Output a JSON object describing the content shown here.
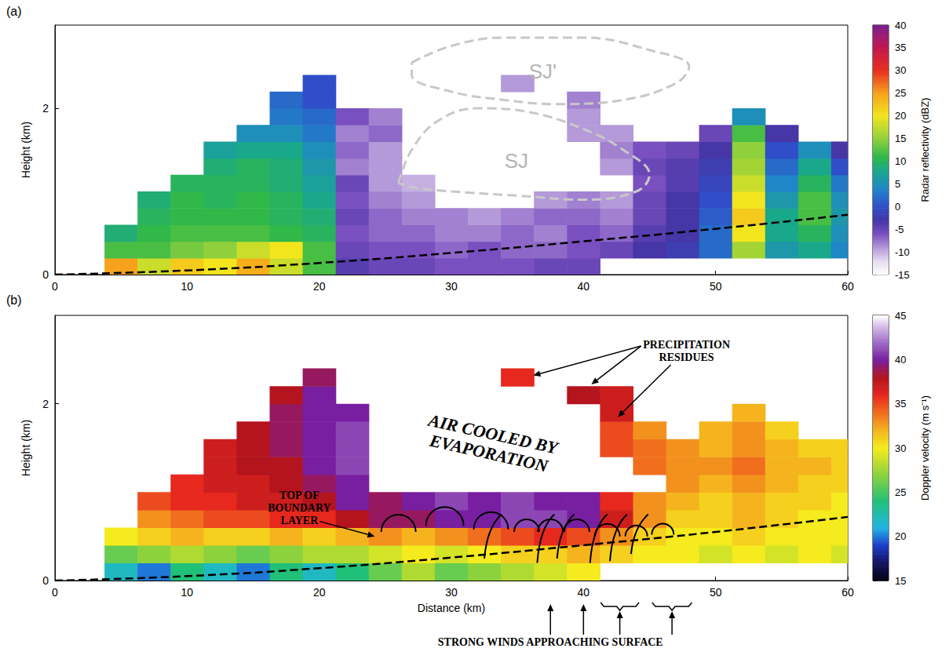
{
  "chart_data": [
    {
      "type": "heatmap",
      "label": "(a)",
      "ylabel": "Height (km)",
      "x": [
        5,
        7.5,
        10,
        12.5,
        15,
        17.5,
        20,
        22.5,
        25,
        27.5,
        30,
        32.5,
        35,
        37.5,
        40,
        42.5,
        45,
        47.5,
        50,
        52.5,
        55,
        57.5,
        60
      ],
      "y": [
        0.1,
        0.3,
        0.5,
        0.7,
        0.9,
        1.1,
        1.3,
        1.5,
        1.7,
        1.9,
        2.1,
        2.3
      ],
      "values": [
        [
          25,
          18,
          22,
          20,
          24,
          18,
          12,
          -4,
          -5,
          -5,
          -6,
          -6,
          -6,
          -5,
          -5,
          null,
          null,
          null,
          null,
          null,
          null,
          null,
          null
        ],
        [
          12,
          12,
          14,
          15,
          18,
          20,
          12,
          -5,
          -6,
          -6,
          -7,
          -6,
          -7,
          -7,
          -6,
          -5,
          -3,
          -2,
          2,
          16,
          6,
          8,
          4
        ],
        [
          9,
          11,
          12,
          12,
          12,
          11,
          10,
          -6,
          -7,
          -7,
          -8,
          -8,
          -7,
          -8,
          -6,
          -7,
          -4,
          -3,
          2,
          20,
          8,
          10,
          5
        ],
        [
          null,
          10,
          11,
          11,
          11,
          10,
          9,
          -5,
          -7,
          -8,
          -8,
          -9,
          -8,
          -7,
          -7,
          -8,
          -5,
          -3,
          1,
          22,
          8,
          12,
          6
        ],
        [
          null,
          9,
          11,
          10,
          11,
          10,
          8,
          -6,
          -8,
          -9,
          null,
          null,
          null,
          -9,
          -8,
          -9,
          -5,
          -3,
          0,
          20,
          6,
          12,
          5
        ],
        [
          null,
          null,
          10,
          10,
          10,
          9,
          7,
          -5,
          -9,
          -10,
          null,
          null,
          null,
          null,
          null,
          null,
          -6,
          -4,
          -1,
          18,
          4,
          10,
          3
        ],
        [
          null,
          null,
          null,
          9,
          10,
          9,
          6,
          -8,
          -9,
          null,
          null,
          null,
          null,
          null,
          null,
          -9,
          -5,
          -4,
          -2,
          16,
          2,
          8,
          0
        ],
        [
          null,
          null,
          null,
          7,
          8,
          8,
          5,
          -7,
          -9,
          null,
          null,
          null,
          null,
          null,
          null,
          -8,
          -6,
          -5,
          -3,
          15,
          0,
          5,
          -3
        ],
        [
          null,
          null,
          null,
          null,
          5,
          5,
          3,
          -8,
          -7,
          null,
          null,
          null,
          null,
          null,
          -9,
          -9,
          null,
          null,
          -5,
          12,
          -3,
          null,
          null
        ],
        [
          null,
          null,
          null,
          null,
          null,
          3,
          2,
          -6,
          -8,
          null,
          null,
          null,
          null,
          null,
          -9,
          null,
          null,
          null,
          null,
          5,
          null,
          null,
          null
        ],
        [
          null,
          null,
          null,
          null,
          null,
          2,
          0,
          null,
          null,
          null,
          null,
          null,
          null,
          null,
          -8,
          null,
          null,
          null,
          null,
          null,
          null,
          null,
          null
        ],
        [
          null,
          null,
          null,
          null,
          null,
          null,
          0,
          null,
          null,
          null,
          null,
          null,
          -9,
          null,
          null,
          null,
          null,
          null,
          null,
          null,
          null,
          null,
          null
        ]
      ],
      "xlim": [
        0,
        60
      ],
      "xticks": [
        0,
        10,
        20,
        30,
        40,
        50,
        60
      ],
      "ylim": [
        0,
        3
      ],
      "yticks": [
        0,
        2
      ],
      "colorbar": {
        "label": "Radar reflectivity (dBZ)",
        "range": [
          -15,
          40
        ],
        "ticks": [
          -15,
          -10,
          -5,
          0,
          5,
          10,
          15,
          20,
          25,
          30,
          35,
          40
        ]
      },
      "reference_line": {
        "x": [
          0,
          10,
          20,
          30,
          40,
          50,
          60
        ],
        "y": [
          0,
          0.05,
          0.14,
          0.26,
          0.4,
          0.55,
          0.72
        ],
        "line_style": "dashed",
        "color": "#000000"
      },
      "regions": [
        {
          "label": "SJ'",
          "x": [
            27,
            30,
            34,
            40,
            45,
            48,
            47,
            43,
            38,
            34,
            30,
            27
          ],
          "y": [
            2.55,
            2.75,
            2.85,
            2.85,
            2.7,
            2.5,
            2.3,
            2.1,
            2.05,
            2.1,
            2.2,
            2.4
          ],
          "line_style": "dashed",
          "color": "#c8c8c8"
        },
        {
          "label": "SJ",
          "x": [
            26,
            27,
            29,
            32,
            36,
            40,
            43,
            45,
            44,
            40,
            35,
            30,
            27
          ],
          "y": [
            1.1,
            1.5,
            1.85,
            2.0,
            1.95,
            1.75,
            1.5,
            1.2,
            1.0,
            0.9,
            0.95,
            1.0,
            1.05
          ],
          "line_style": "dashed",
          "color": "#c8c8c8"
        }
      ]
    },
    {
      "type": "heatmap",
      "label": "(b)",
      "xlabel": "Distance (km)",
      "ylabel": "Height (km)",
      "x": [
        5,
        7.5,
        10,
        12.5,
        15,
        17.5,
        20,
        22.5,
        25,
        27.5,
        30,
        32.5,
        35,
        37.5,
        40,
        42.5,
        45,
        47.5,
        50,
        52.5,
        55,
        57.5,
        60
      ],
      "y": [
        0.1,
        0.3,
        0.5,
        0.7,
        0.9,
        1.1,
        1.3,
        1.5,
        1.7,
        1.9,
        2.1,
        2.3
      ],
      "values": [
        [
          22,
          20,
          24,
          22,
          20,
          24,
          22,
          24,
          26,
          28,
          26,
          27,
          28,
          29,
          30,
          null,
          null,
          null,
          null,
          null,
          null,
          null,
          null
        ],
        [
          26,
          27,
          28,
          27,
          26,
          27,
          28,
          28,
          29,
          30,
          29,
          30,
          31,
          31,
          32,
          31,
          30,
          30,
          29,
          30,
          29,
          30,
          29
        ],
        [
          30,
          31,
          32,
          31,
          31,
          32,
          31,
          32,
          33,
          32,
          33,
          34,
          35,
          36,
          35,
          33,
          31,
          30,
          30,
          31,
          30,
          30,
          30
        ],
        [
          null,
          33,
          34,
          35,
          35,
          36,
          36,
          38,
          39,
          39,
          40,
          40,
          41,
          41,
          40,
          37,
          33,
          31,
          31,
          32,
          31,
          30,
          30
        ],
        [
          null,
          35,
          36,
          36,
          37,
          37,
          38,
          40,
          39,
          40,
          41,
          40,
          41,
          40,
          40,
          36,
          33,
          32,
          31,
          32,
          31,
          31,
          30
        ],
        [
          null,
          null,
          36,
          37,
          37,
          38,
          39,
          40,
          null,
          null,
          null,
          null,
          null,
          null,
          null,
          null,
          null,
          33,
          32,
          33,
          32,
          31,
          31
        ],
        [
          null,
          null,
          null,
          37,
          38,
          38,
          40,
          41,
          null,
          null,
          null,
          null,
          null,
          null,
          null,
          null,
          34,
          33,
          33,
          34,
          32,
          32,
          31
        ],
        [
          null,
          null,
          null,
          37,
          38,
          39,
          40,
          41,
          null,
          null,
          null,
          null,
          null,
          null,
          null,
          35,
          34,
          33,
          32,
          33,
          32,
          31,
          31
        ],
        [
          null,
          null,
          null,
          null,
          38,
          39,
          40,
          41,
          null,
          null,
          null,
          null,
          null,
          null,
          null,
          35,
          33,
          null,
          32,
          33,
          31,
          null,
          null
        ],
        [
          null,
          null,
          null,
          null,
          null,
          39,
          40,
          40,
          null,
          null,
          null,
          null,
          null,
          null,
          null,
          37,
          null,
          null,
          null,
          32,
          null,
          null,
          null
        ],
        [
          null,
          null,
          null,
          null,
          null,
          38,
          40,
          null,
          null,
          null,
          null,
          null,
          null,
          null,
          38,
          37,
          null,
          null,
          null,
          null,
          null,
          null,
          null
        ],
        [
          null,
          null,
          null,
          null,
          null,
          null,
          39,
          null,
          null,
          null,
          null,
          null,
          36,
          null,
          null,
          null,
          null,
          null,
          null,
          null,
          null,
          null,
          null
        ]
      ],
      "xlim": [
        0,
        60
      ],
      "xticks": [
        0,
        10,
        20,
        30,
        40,
        50,
        60
      ],
      "ylim": [
        0,
        3
      ],
      "yticks": [
        0,
        2
      ],
      "colorbar": {
        "label": "Doppler velocity (m s⁻¹)",
        "range": [
          15,
          45
        ],
        "ticks": [
          15,
          20,
          25,
          30,
          35,
          40,
          45
        ]
      },
      "reference_line": {
        "x": [
          0,
          10,
          20,
          30,
          40,
          50,
          60
        ],
        "y": [
          0,
          0.05,
          0.14,
          0.26,
          0.4,
          0.55,
          0.72
        ],
        "line_style": "dashed",
        "color": "#000000"
      },
      "annotations": [
        "TOP OF BOUNDARY LAYER",
        "AIR COOLED BY EVAPORATION",
        "PRECIPITATION RESIDUES",
        "STRONG WINDS APPROACHING SURFACE"
      ]
    }
  ]
}
